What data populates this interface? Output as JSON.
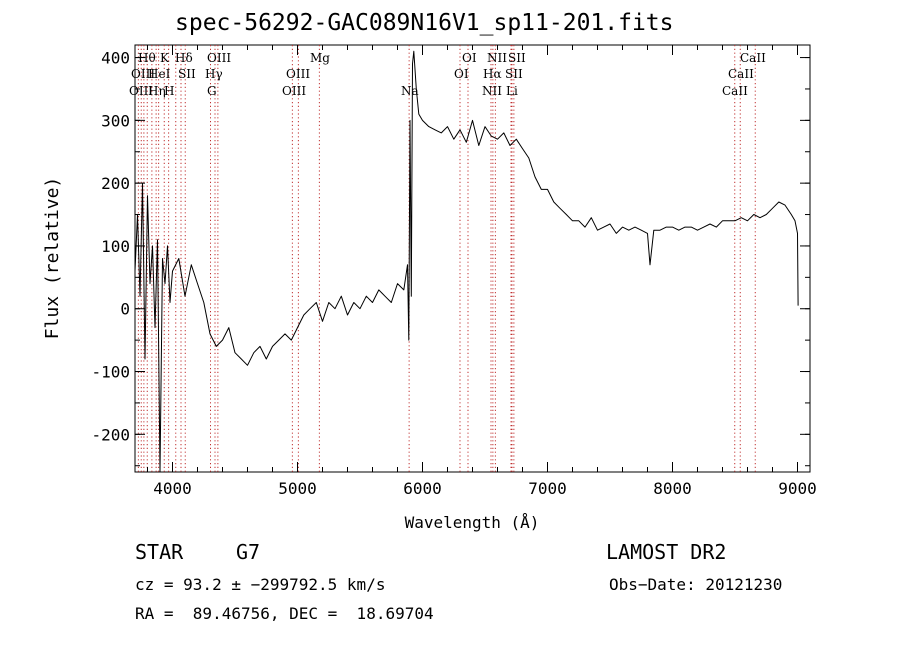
{
  "chart_data": {
    "type": "line",
    "title": "spec-56292-GAC089N16V1_sp11-201.fits",
    "xlabel": "Wavelength (Å)",
    "ylabel": "Flux (relative)",
    "xlim": [
      3700,
      9100
    ],
    "ylim": [
      -260,
      420
    ],
    "xticks": [
      4000,
      5000,
      6000,
      7000,
      8000,
      9000
    ],
    "yticks": [
      -200,
      -100,
      0,
      100,
      200,
      300,
      400
    ],
    "grid": false,
    "series": [
      {
        "x": [
          3700,
          3720,
          3740,
          3760,
          3780,
          3800,
          3820,
          3840,
          3860,
          3880,
          3900,
          3920,
          3940,
          3960,
          3980,
          4000,
          4050,
          4100,
          4150,
          4200,
          4250,
          4300,
          4350,
          4400,
          4450,
          4500,
          4550,
          4600,
          4650,
          4700,
          4750,
          4800,
          4850,
          4900,
          4950,
          5000,
          5050,
          5100,
          5150,
          5200,
          5250,
          5300,
          5350,
          5400,
          5450,
          5500,
          5550,
          5600,
          5650,
          5700,
          5750,
          5800,
          5850,
          5880,
          5890,
          5900,
          5910,
          5920,
          5930,
          5950,
          5970,
          6000,
          6050,
          6100,
          6150,
          6200,
          6250,
          6300,
          6350,
          6400,
          6450,
          6500,
          6550,
          6600,
          6650,
          6700,
          6750,
          6800,
          6850,
          6900,
          6950,
          7000,
          7050,
          7100,
          7150,
          7200,
          7250,
          7300,
          7350,
          7400,
          7450,
          7500,
          7550,
          7600,
          7650,
          7700,
          7750,
          7800,
          7820,
          7850,
          7900,
          7950,
          8000,
          8050,
          8100,
          8150,
          8200,
          8250,
          8300,
          8350,
          8400,
          8450,
          8500,
          8550,
          8600,
          8650,
          8700,
          8750,
          8800,
          8850,
          8900,
          8950,
          8980,
          9000,
          9005
        ],
        "y": [
          60,
          150,
          20,
          200,
          -80,
          180,
          40,
          100,
          -30,
          110,
          -260,
          80,
          40,
          100,
          10,
          60,
          80,
          20,
          70,
          40,
          10,
          -40,
          -60,
          -50,
          -30,
          -70,
          -80,
          -90,
          -70,
          -60,
          -80,
          -60,
          -50,
          -40,
          -50,
          -30,
          -10,
          0,
          10,
          -20,
          10,
          0,
          20,
          -10,
          10,
          0,
          20,
          10,
          30,
          20,
          10,
          40,
          30,
          70,
          -50,
          300,
          20,
          390,
          410,
          350,
          310,
          300,
          290,
          285,
          280,
          290,
          270,
          285,
          265,
          300,
          260,
          290,
          275,
          270,
          280,
          260,
          270,
          255,
          240,
          210,
          190,
          190,
          170,
          160,
          150,
          140,
          140,
          130,
          145,
          125,
          130,
          135,
          120,
          130,
          125,
          130,
          125,
          120,
          70,
          125,
          125,
          130,
          130,
          125,
          130,
          130,
          125,
          130,
          135,
          130,
          140,
          140,
          140,
          145,
          140,
          150,
          145,
          150,
          160,
          170,
          165,
          150,
          140,
          120,
          5
        ]
      }
    ],
    "line_labels": [
      "Hθ",
      "K",
      "Hδ",
      "OIII",
      "Mg",
      "OI",
      "NII",
      "SII",
      "CaII",
      "OIII",
      "HeI",
      "SII",
      "Hγ",
      "OIII",
      "OI",
      "Hα",
      "SII",
      "CaII",
      "OIII",
      "Hη",
      "H",
      "G",
      "OIII",
      "Na",
      "NII",
      "Li",
      "CaII"
    ]
  },
  "footer": {
    "class": "STAR",
    "subclass": "G7",
    "survey": "LAMOST DR2",
    "cz": "cz = 93.2 ± −299792.5 km/s",
    "obs_date": "Obs−Date: 20121230",
    "coords": "RA =  89.46756, DEC =  18.69704"
  }
}
